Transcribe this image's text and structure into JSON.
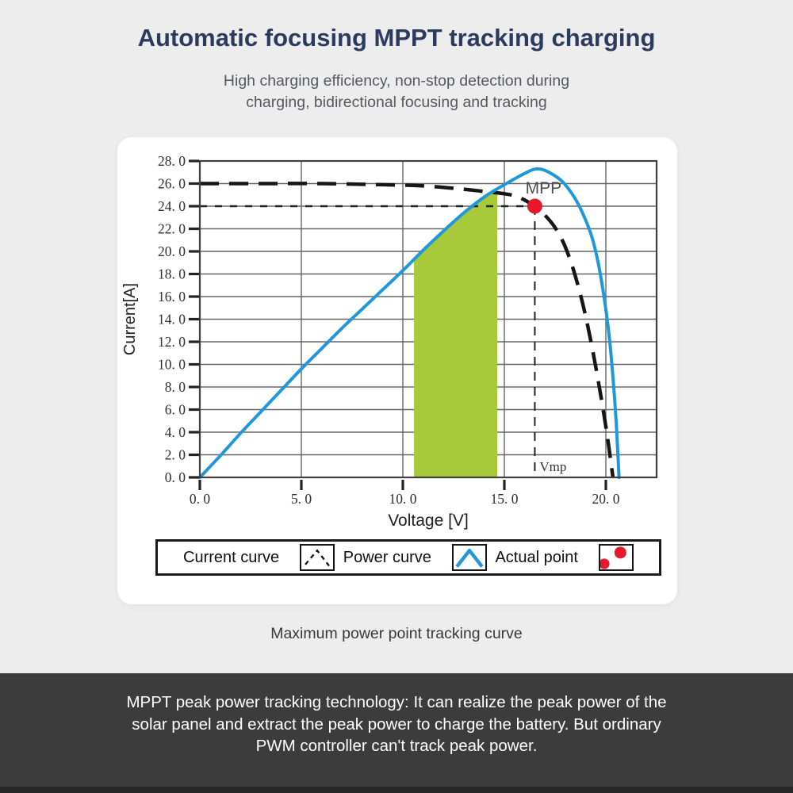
{
  "page": {
    "background": "#ededee"
  },
  "header": {
    "title": "Automatic focusing MPPT tracking charging",
    "subtitle_line1": "High charging efficiency, non-stop detection during",
    "subtitle_line2": "charging, bidirectional focusing and tracking"
  },
  "card": {
    "caption": "Maximum power point tracking curve"
  },
  "chart_data": {
    "type": "line",
    "title": "",
    "xlabel": "Voltage [V]",
    "ylabel": "Current[A]",
    "xlim": [
      0,
      22.5
    ],
    "ylim": [
      0,
      28
    ],
    "grid": true,
    "x_ticks": [
      0,
      5,
      10,
      15,
      20
    ],
    "x_tick_labels": [
      "0. 0",
      "5. 0",
      "10. 0",
      "15. 0",
      "20. 0"
    ],
    "y_ticks": [
      0,
      2,
      4,
      6,
      8,
      10,
      12,
      14,
      16,
      18,
      20,
      22,
      24,
      26,
      28
    ],
    "y_tick_labels": [
      "0. 0",
      "2. 0",
      "4. 0",
      "6. 0",
      "8. 0",
      "10. 0",
      "12. 0",
      "14. 0",
      "16. 0",
      "18. 0",
      "20. 0",
      "22. 0",
      "24. 0",
      "26. 0",
      "28. 0"
    ],
    "colors": {
      "power_curve": "#2097d9",
      "current_curve": "#161616",
      "actual_point": "#e6182b",
      "green_region": "#a7ca3b",
      "grid_line": "#666666",
      "plot_border": "#3f3f3f"
    },
    "series": [
      {
        "name": "Power curve",
        "style": "solid",
        "points": [
          [
            0,
            0
          ],
          [
            1,
            1.9
          ],
          [
            2,
            3.9
          ],
          [
            3,
            5.8
          ],
          [
            4,
            7.7
          ],
          [
            5,
            9.6
          ],
          [
            6,
            11.4
          ],
          [
            7,
            13.2
          ],
          [
            8,
            14.9
          ],
          [
            9,
            16.6
          ],
          [
            10,
            18.3
          ],
          [
            11,
            20.1
          ],
          [
            12,
            21.8
          ],
          [
            13,
            23.4
          ],
          [
            14,
            24.8
          ],
          [
            15,
            25.9
          ],
          [
            16,
            26.9
          ],
          [
            16.6,
            27.3
          ],
          [
            17.2,
            27.0
          ],
          [
            18,
            25.9
          ],
          [
            18.8,
            23.6
          ],
          [
            19.5,
            20.0
          ],
          [
            20.1,
            13.5
          ],
          [
            20.45,
            6.5
          ],
          [
            20.65,
            0
          ]
        ]
      },
      {
        "name": "Current curve",
        "style": "dashed",
        "points": [
          [
            0,
            26
          ],
          [
            3,
            26
          ],
          [
            6,
            26
          ],
          [
            9,
            25.9
          ],
          [
            11,
            25.8
          ],
          [
            13,
            25.5
          ],
          [
            14,
            25.3
          ],
          [
            15,
            25.1
          ],
          [
            15.7,
            24.8
          ],
          [
            16.5,
            24.0
          ],
          [
            17,
            23.2
          ],
          [
            17.5,
            22.1
          ],
          [
            18,
            20.4
          ],
          [
            18.5,
            17.8
          ],
          [
            19,
            14.3
          ],
          [
            19.5,
            9.8
          ],
          [
            20,
            4.5
          ],
          [
            20.35,
            0
          ]
        ]
      }
    ],
    "annotations": {
      "mpp": {
        "x": 16.5,
        "y": 24.0,
        "label": "MPP"
      },
      "vmp_label": "Vmp",
      "vmp_x": 16.5,
      "ref_line_y": 24.0
    },
    "green_region": {
      "x0": 10.55,
      "x1": 14.65
    },
    "legend": {
      "items": [
        {
          "label": "Current curve",
          "icon": "dashed-peak-icon"
        },
        {
          "label": "Power curve",
          "icon": "blue-peak-icon"
        },
        {
          "label": "Actual point",
          "icon": "red-dots-icon"
        }
      ]
    }
  },
  "footer": {
    "line1": "MPPT peak power tracking technology: It can realize the peak power of the",
    "line2": "solar panel and extract the peak power to charge the battery. But ordinary",
    "line3": "PWM controller can't track peak power."
  }
}
